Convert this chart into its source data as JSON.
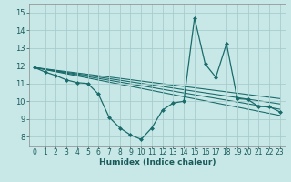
{
  "xlabel": "Humidex (Indice chaleur)",
  "bg_color": "#c8e8e8",
  "grid_color": "#a8cccc",
  "line_color": "#1a6b6b",
  "xlim": [
    -0.5,
    23.5
  ],
  "ylim": [
    7.5,
    15.5
  ],
  "yticks": [
    8,
    9,
    10,
    11,
    12,
    13,
    14,
    15
  ],
  "xticks": [
    0,
    1,
    2,
    3,
    4,
    5,
    6,
    7,
    8,
    9,
    10,
    11,
    12,
    13,
    14,
    15,
    16,
    17,
    18,
    19,
    20,
    21,
    22,
    23
  ],
  "x_main": [
    0,
    1,
    2,
    3,
    4,
    5,
    6,
    7,
    8,
    9,
    10,
    11,
    12,
    13,
    14,
    15,
    16,
    17,
    18,
    19,
    20,
    21,
    22,
    23
  ],
  "y_main": [
    11.9,
    11.65,
    11.45,
    11.2,
    11.05,
    11.0,
    10.4,
    9.1,
    8.5,
    8.1,
    7.85,
    8.5,
    9.5,
    9.9,
    10.0,
    14.7,
    12.1,
    11.35,
    13.25,
    10.15,
    10.1,
    9.7,
    9.7,
    9.4
  ],
  "trend_lines": [
    [
      [
        0,
        23
      ],
      [
        11.9,
        9.2
      ]
    ],
    [
      [
        0,
        23
      ],
      [
        11.9,
        9.55
      ]
    ],
    [
      [
        0,
        23
      ],
      [
        11.9,
        9.85
      ]
    ],
    [
      [
        0,
        23
      ],
      [
        11.9,
        10.15
      ]
    ]
  ]
}
